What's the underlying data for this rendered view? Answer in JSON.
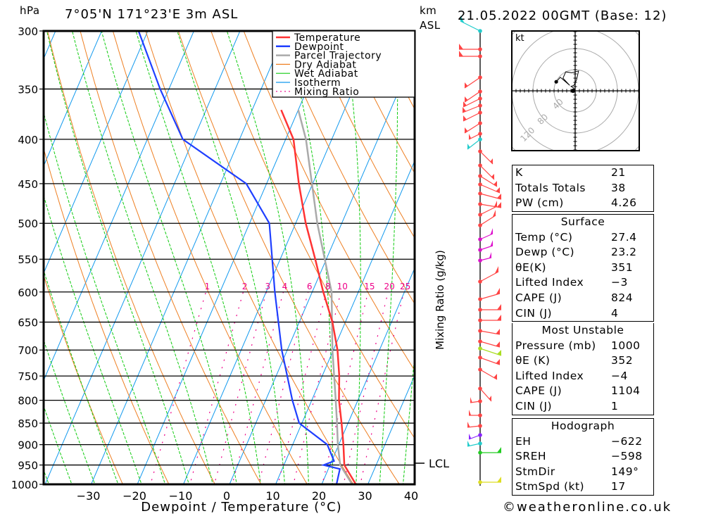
{
  "header": {
    "pressure_unit": "hPa",
    "location": "7°05'N  171°23'E  3m  ASL",
    "height_unit_line1": "km",
    "height_unit_line2": "ASL",
    "datetime": "21.05.2022  00GMT  (Base: 12)"
  },
  "footer": {
    "copyright": "©weatheronline.co.uk"
  },
  "colors": {
    "temperature": "#ff3333",
    "dewpoint": "#1f3fff",
    "parcel": "#aaaaaa",
    "dry_adiabat": "#ee7f22",
    "wet_adiabat": "#11cc11",
    "isotherm": "#1199ee",
    "mixing_ratio": "#ee0088"
  },
  "chart_data": {
    "type": "line",
    "title": "7°05'N  171°23'E  3m  ASL",
    "xlabel": "Dewpoint / Temperature (°C)",
    "ylabel": "hPa",
    "secondary_ylabel": "Mixing Ratio (g/kg)",
    "xlim": [
      -40,
      40
    ],
    "ylim": [
      1000,
      300
    ],
    "x_ticks": [
      "-30",
      "-20",
      "-10",
      "0",
      "10",
      "20",
      "30",
      "40"
    ],
    "x_tick_values": [
      -30,
      -20,
      -10,
      0,
      10,
      20,
      30,
      40
    ],
    "y_ticks": [
      "300",
      "350",
      "400",
      "450",
      "500",
      "550",
      "600",
      "650",
      "700",
      "750",
      "800",
      "850",
      "900",
      "950",
      "1000"
    ],
    "y_tick_values": [
      300,
      350,
      400,
      450,
      500,
      550,
      600,
      650,
      700,
      750,
      800,
      850,
      900,
      950,
      1000
    ],
    "mixing_ratio_labels": [
      "1",
      "2",
      "3",
      "4",
      "6",
      "8",
      "10",
      "15",
      "20",
      "25"
    ],
    "mixing_ratio_values": [
      1,
      2,
      3,
      4,
      6,
      8,
      10,
      15,
      20,
      25
    ],
    "legend": [
      "Temperature",
      "Dewpoint",
      "Parcel Trajectory",
      "Dry Adiabat",
      "Wet Adiabat",
      "Isotherm",
      "Mixing Ratio"
    ],
    "legend_position": "top-right",
    "lcl_label": "LCL",
    "lcl_pressure": 948,
    "series": [
      {
        "name": "Temperature",
        "pressure": [
          1000,
          950,
          900,
          850,
          800,
          750,
          700,
          650,
          600,
          550,
          500,
          450,
          400,
          370
        ],
        "values": [
          27.4,
          23.1,
          21.0,
          18.6,
          15.9,
          13.7,
          10.9,
          7.2,
          2.4,
          -2.4,
          -7.8,
          -13.0,
          -18.3,
          -23.7
        ]
      },
      {
        "name": "Dewpoint",
        "pressure": [
          1000,
          960,
          950,
          940,
          900,
          850,
          800,
          700,
          600,
          500,
          450,
          400,
          350,
          300
        ],
        "values": [
          23.2,
          22.5,
          18.6,
          20.5,
          17.5,
          9.4,
          5.8,
          -1.2,
          -8.1,
          -15.7,
          -24.4,
          -42.3,
          -51.9,
          -62.0
        ]
      },
      {
        "name": "Parcel Trajectory",
        "pressure": [
          1000,
          950,
          900,
          850,
          800,
          700,
          600,
          500,
          400,
          370
        ],
        "values": [
          26.6,
          22.2,
          19.8,
          17.6,
          15.2,
          9.8,
          4.2,
          -5.3,
          -15.6,
          -20.0
        ]
      }
    ]
  },
  "hodograph": {
    "unit": "kt",
    "ring_labels": [
      "40",
      "80",
      "120"
    ],
    "ring_values": [
      40,
      80,
      120
    ],
    "trace_kt": [
      [
        -3,
        -1
      ],
      [
        -1,
        2
      ],
      [
        -4,
        4
      ],
      [
        -6,
        5
      ],
      [
        -2,
        6
      ],
      [
        2,
        12
      ],
      [
        5,
        22
      ],
      [
        -5,
        20
      ],
      [
        -14,
        21
      ],
      [
        -18,
        14
      ],
      [
        -8,
        6
      ],
      [
        -22,
        15
      ],
      [
        -28,
        10
      ]
    ]
  },
  "stats": {
    "indices": [
      {
        "label": "K",
        "value": "21"
      },
      {
        "label": "Totals Totals",
        "value": "38"
      },
      {
        "label": "PW (cm)",
        "value": "4.26"
      }
    ],
    "surface": {
      "title": "Surface",
      "rows": [
        {
          "label": "Temp (°C)",
          "value": "27.4"
        },
        {
          "label": "Dewp (°C)",
          "value": "23.2"
        },
        {
          "label": "θE(K)",
          "value": "351"
        },
        {
          "label": "Lifted Index",
          "value": "−3"
        },
        {
          "label": "CAPE (J)",
          "value": "824"
        },
        {
          "label": "CIN (J)",
          "value": "4"
        }
      ]
    },
    "most_unstable": {
      "title": "Most Unstable",
      "rows": [
        {
          "label": "Pressure (mb)",
          "value": "1000"
        },
        {
          "label": "θE (K)",
          "value": "352"
        },
        {
          "label": "Lifted Index",
          "value": "−4"
        },
        {
          "label": "CAPE (J)",
          "value": "1104"
        },
        {
          "label": "CIN (J)",
          "value": "1"
        }
      ]
    },
    "hodograph": {
      "title": "Hodograph",
      "rows": [
        {
          "label": "EH",
          "value": "−622"
        },
        {
          "label": "SREH",
          "value": "−598"
        },
        {
          "label": "StmDir",
          "value": "149°"
        },
        {
          "label": "StmSpd (kt)",
          "value": "17"
        }
      ]
    }
  }
}
